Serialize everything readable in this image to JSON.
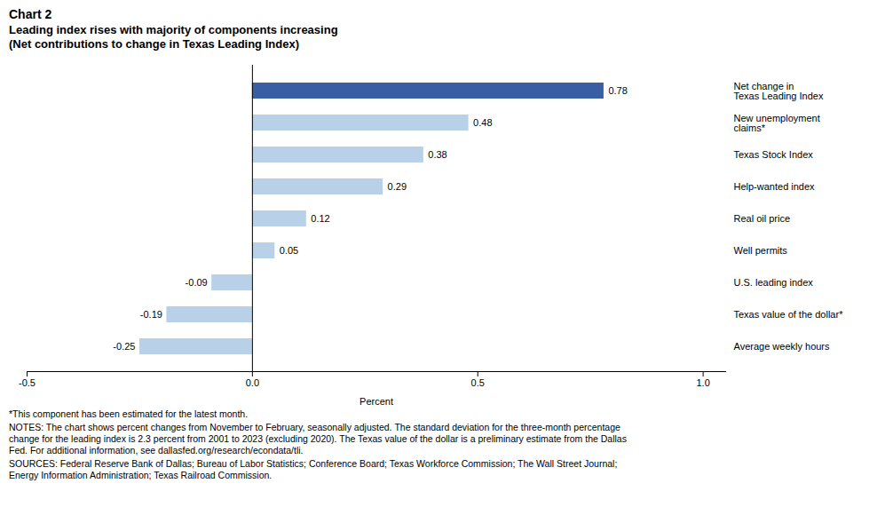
{
  "chart_data": {
    "type": "bar",
    "orientation": "horizontal",
    "title": "Chart 2",
    "subtitle": "Leading index rises with majority of components increasing\n(Net contributions to change in Texas Leading Index)",
    "categories": [
      "Average weekly hours",
      "Texas value of the dollar*",
      "U.S. leading index",
      "Well permits",
      "Real oil price",
      "Help-wanted index",
      "Texas Stock Index",
      "New unemployment\nclaims*",
      "Net change in\nTexas Leading Index"
    ],
    "values": [
      -0.25,
      -0.19,
      -0.09,
      0.05,
      0.12,
      0.29,
      0.38,
      0.48,
      0.78
    ],
    "colors": [
      "#b8d0e8",
      "#b8d0e8",
      "#b8d0e8",
      "#b8d0e8",
      "#b8d0e8",
      "#b8d0e8",
      "#b8d0e8",
      "#b8d0e8",
      "#3a5ea3"
    ],
    "data_labels": true,
    "xlabel": "Percent",
    "xlim": [
      -0.5,
      1.05
    ],
    "xticks": [
      -0.5,
      {
        "value": 0,
        "label": "0.0"
      },
      0.5,
      {
        "value": 1,
        "label": "1.0"
      }
    ],
    "grid": false,
    "annotations": [
      "*This component has been estimated for the latest month.",
      "NOTES: The chart shows percent changes from November to February, seasonally adjusted. The standard deviation for the three-month percentage\nchange for the leading index is 2.3 percent from 2001 to 2023 (excluding 2020). The Texas value of the dollar is a preliminary estimate from the Dallas\nFed. For additional information, see dallasfed.org/research/econdata/tli.",
      "SOURCES: Federal Reserve Bank of Dallas; Bureau of Labor Statistics; Conference Board; Texas Workforce Commission; The Wall Street Journal;\nEnergy Information Administration; Texas Railroad Commission."
    ]
  }
}
